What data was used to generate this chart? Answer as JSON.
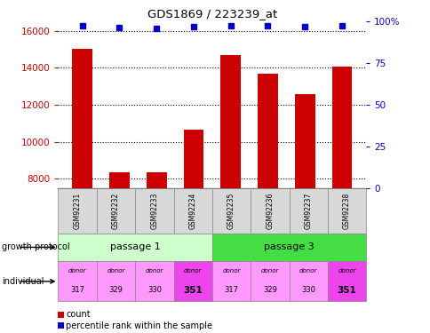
{
  "title": "GDS1869 / 223239_at",
  "samples": [
    "GSM92231",
    "GSM92232",
    "GSM92233",
    "GSM92234",
    "GSM92235",
    "GSM92236",
    "GSM92237",
    "GSM92238"
  ],
  "counts": [
    15050,
    8350,
    8380,
    10650,
    14700,
    13700,
    12600,
    14050
  ],
  "percentiles": [
    97.5,
    96.5,
    96.2,
    97.0,
    97.5,
    97.8,
    97.2,
    97.5
  ],
  "ylim_left": [
    7500,
    16500
  ],
  "ylim_right": [
    0,
    100
  ],
  "yticks_left": [
    8000,
    10000,
    12000,
    14000,
    16000
  ],
  "yticks_right": [
    0,
    25,
    50,
    75,
    100
  ],
  "bar_color": "#cc0000",
  "dot_color": "#0000cc",
  "passage1_color": "#ccffcc",
  "passage3_color": "#44dd44",
  "donor_colors_light": "#ff99ff",
  "donor_colors_dark": "#ee44ee",
  "donors": [
    "317",
    "329",
    "330",
    "351",
    "317",
    "329",
    "330",
    "351"
  ],
  "donor_highlight": [
    false,
    false,
    false,
    true,
    false,
    false,
    false,
    true
  ],
  "sample_box_color": "#d8d8d8",
  "left_axis_color": "#cc0000",
  "right_axis_color": "#0000cc"
}
